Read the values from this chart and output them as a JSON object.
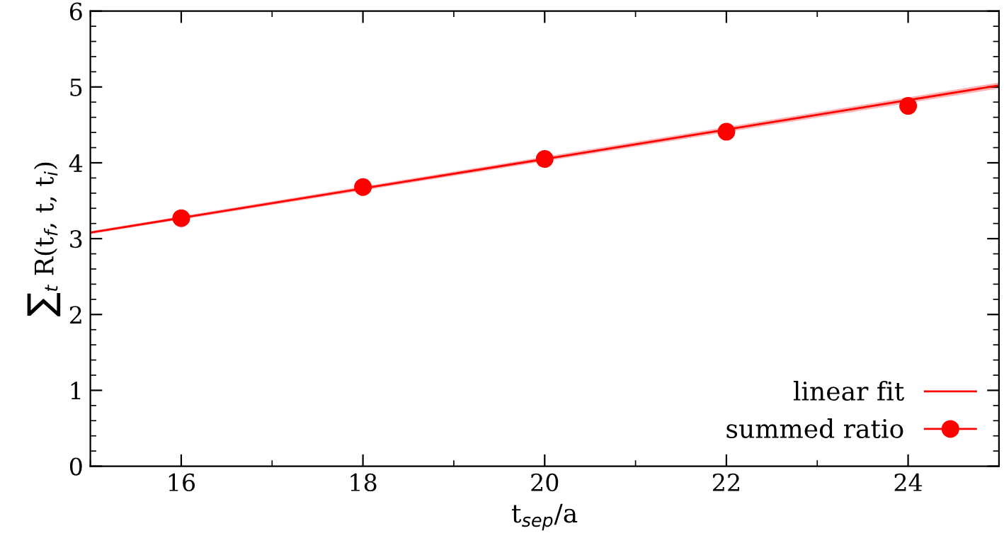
{
  "chart_data": {
    "type": "scatter",
    "xlabel": "t$_{sep}$/a",
    "ylabel": "∑$_{t}$ R(t$_{f}$, t, t$_{i}$)",
    "xlim": [
      15,
      25
    ],
    "xticks": [
      16,
      18,
      20,
      22,
      24
    ],
    "ylim": [
      0,
      6
    ],
    "yticks": [
      0,
      1,
      2,
      3,
      4,
      5,
      6
    ],
    "grid": false,
    "legend": "bottom right",
    "series": [
      {
        "name": "linear fit",
        "type": "line",
        "color": "#ff0000",
        "x": [
          15,
          25
        ],
        "values": [
          3.08,
          5.02
        ],
        "lower": [
          3.06,
          4.98
        ],
        "upper": [
          3.1,
          5.06
        ],
        "line_style": "solid"
      },
      {
        "name": "summed ratio",
        "marker": "circle",
        "color": "#ff0000",
        "x": [
          16,
          18,
          20,
          22,
          24
        ],
        "values": [
          3.27,
          3.68,
          4.05,
          4.41,
          4.75
        ],
        "errors": [
          0.02,
          0.02,
          0.02,
          0.02,
          0.02
        ]
      }
    ]
  }
}
